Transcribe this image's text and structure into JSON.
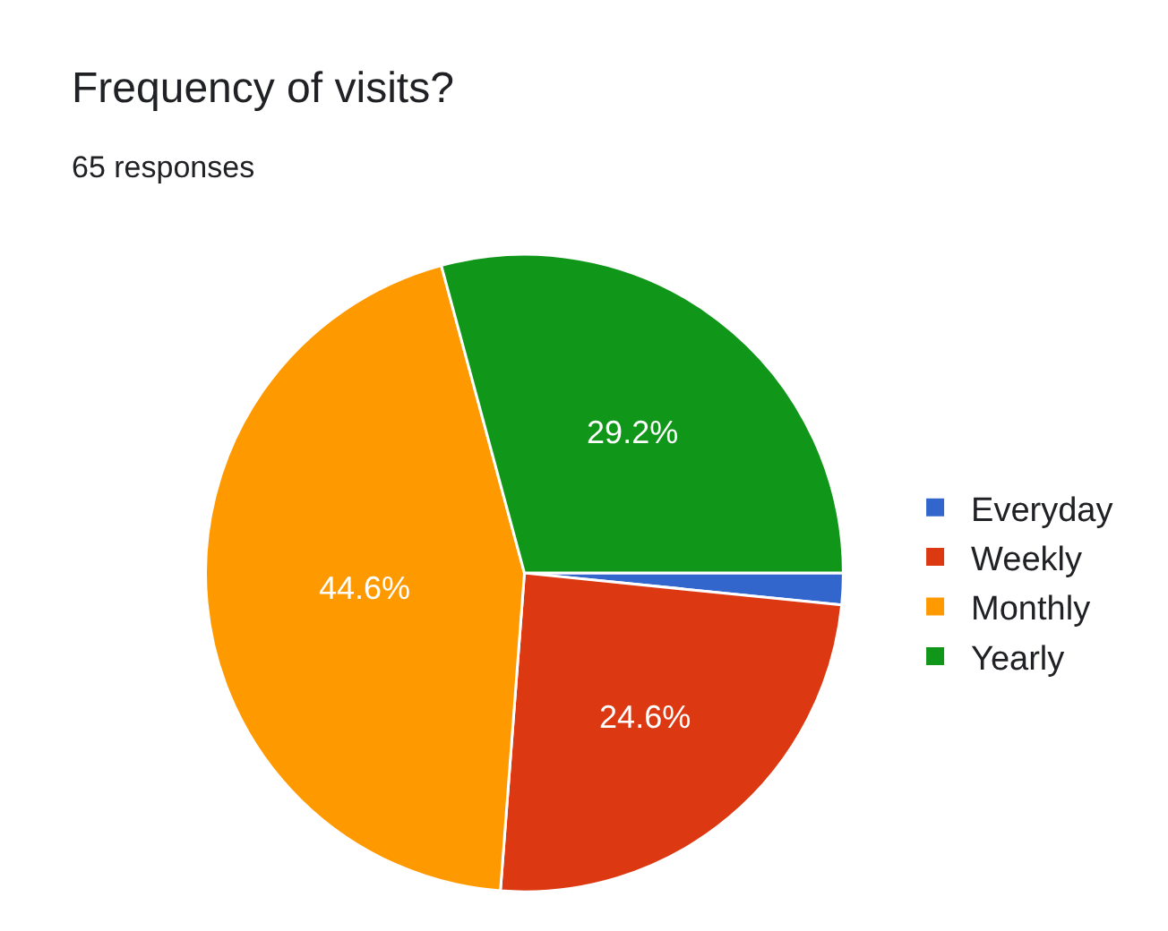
{
  "chart_data": {
    "type": "pie",
    "title": "Frequency of visits?",
    "subtitle": "65 responses",
    "categories": [
      "Everyday",
      "Weekly",
      "Monthly",
      "Yearly"
    ],
    "values": [
      1.6,
      24.6,
      44.6,
      29.2
    ],
    "value_labels": [
      null,
      "24.6%",
      "44.6%",
      "29.2%"
    ],
    "colors": [
      "#3366cc",
      "#dc3912",
      "#ff9900",
      "#109618"
    ],
    "legend": "right"
  }
}
